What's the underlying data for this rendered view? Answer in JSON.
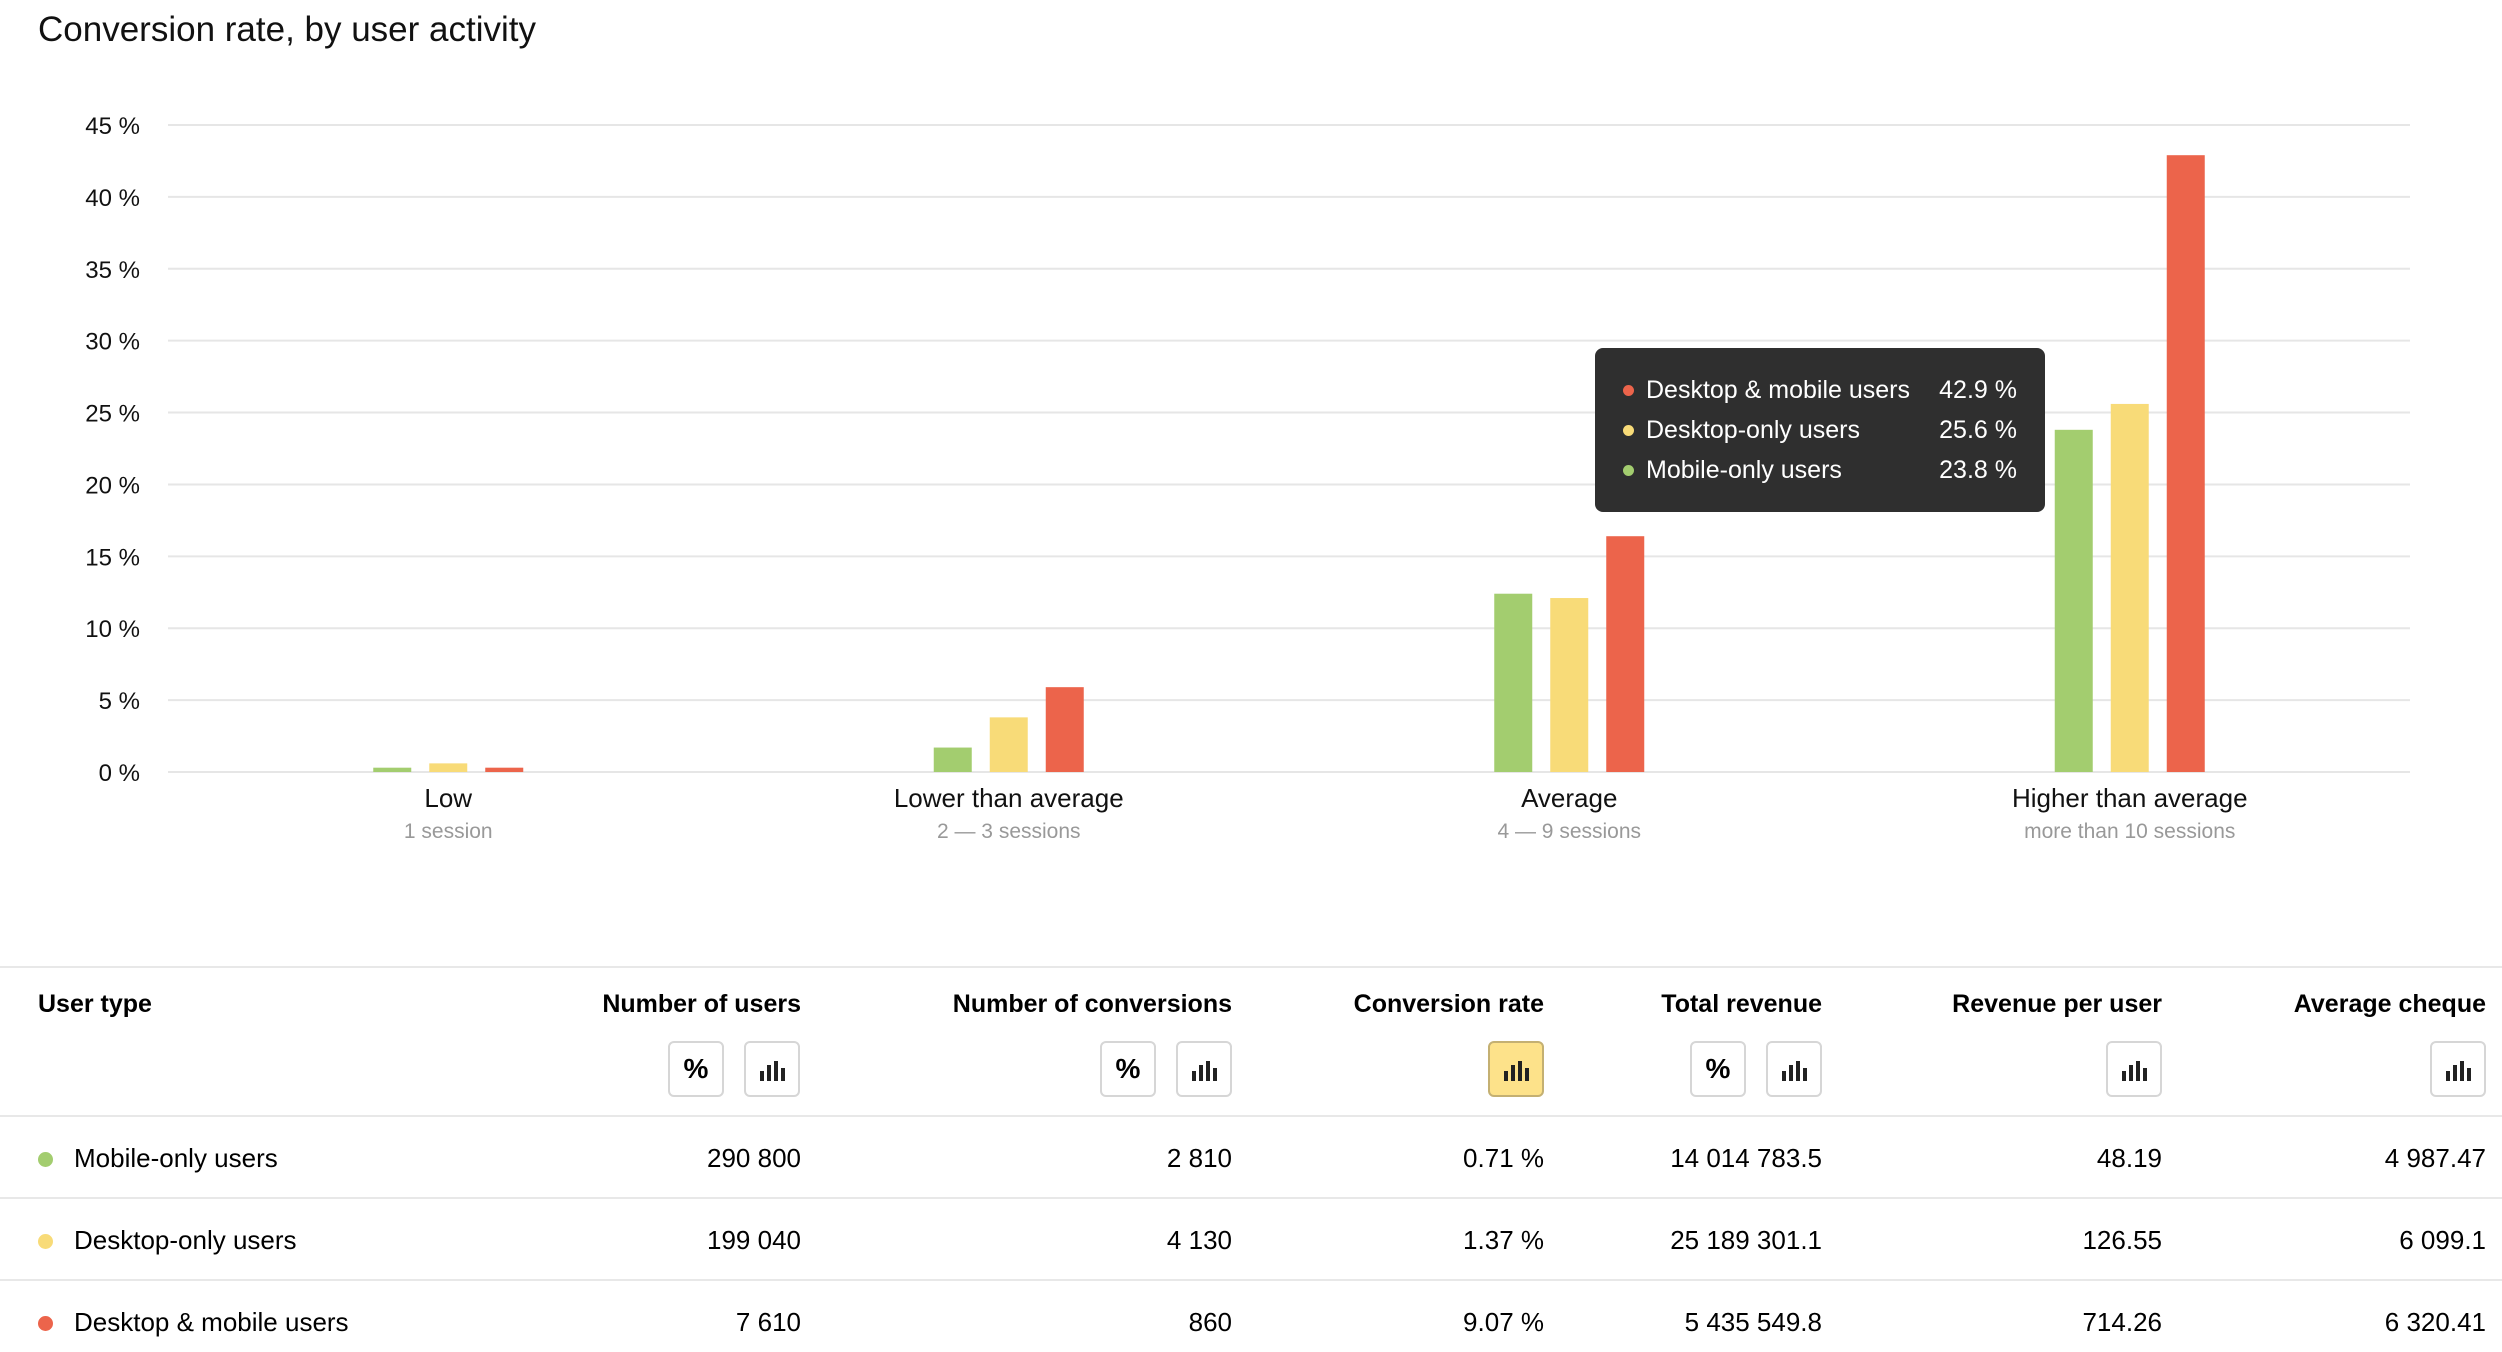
{
  "title": "Conversion rate, by user activity",
  "colors": {
    "mobile": "#a3cd6f",
    "desktop": "#f8db78",
    "both": "#ec644b",
    "grid": "#e6e6e6",
    "tooltip_bg": "#2f2f2f",
    "active_button": "#fde28a"
  },
  "chart_data": {
    "type": "bar",
    "y_ticks": [
      "45 %",
      "40 %",
      "35 %",
      "30 %",
      "25 %",
      "20 %",
      "15 %",
      "10 %",
      "5 %",
      "0 %"
    ],
    "ylim": [
      0,
      45
    ],
    "grid": true,
    "categories": [
      {
        "label": "Low",
        "sublabel": "1 session"
      },
      {
        "label": "Lower than average",
        "sublabel": "2 — 3 sessions"
      },
      {
        "label": "Average",
        "sublabel": "4 — 9 sessions"
      },
      {
        "label": "Higher than average",
        "sublabel": "more than 10 sessions"
      }
    ],
    "series": [
      {
        "name": "Mobile-only users",
        "color": "#a3cd6f",
        "values": [
          0.3,
          1.7,
          12.4,
          23.8
        ]
      },
      {
        "name": "Desktop-only users",
        "color": "#f8db78",
        "values": [
          0.6,
          3.8,
          12.1,
          25.6
        ]
      },
      {
        "name": "Desktop & mobile users",
        "color": "#ec644b",
        "values": [
          0.3,
          5.9,
          16.4,
          42.9
        ]
      }
    ]
  },
  "tooltip": {
    "rows": [
      {
        "name": "Desktop & mobile users",
        "value": "42.9 %",
        "color": "#ec644b"
      },
      {
        "name": "Desktop-only users",
        "value": "25.6 %",
        "color": "#f8db78"
      },
      {
        "name": "Mobile-only users",
        "value": "23.8 %",
        "color": "#a3cd6f"
      }
    ]
  },
  "table": {
    "headers": {
      "user_type": "User type",
      "users": "Number of users",
      "conversions": "Number of conversions",
      "rate": "Conversion rate",
      "revenue": "Total revenue",
      "revenue_per_user": "Revenue per user",
      "average_cheque": "Average cheque"
    },
    "icons": {
      "percent": "percent-icon",
      "chart": "bar-chart-icon"
    },
    "percent_symbol": "%",
    "rows": [
      {
        "name": "Mobile-only users",
        "color": "#a3cd6f",
        "users": "290 800",
        "conversions": "2 810",
        "rate": "0.71 %",
        "revenue": "14 014 783.5",
        "revenue_per_user": "48.19",
        "average_cheque": "4 987.47"
      },
      {
        "name": "Desktop-only users",
        "color": "#f8db78",
        "users": "199 040",
        "conversions": "4 130",
        "rate": "1.37 %",
        "revenue": "25 189 301.1",
        "revenue_per_user": "126.55",
        "average_cheque": "6 099.1"
      },
      {
        "name": "Desktop & mobile users",
        "color": "#ec644b",
        "users": "7 610",
        "conversions": "860",
        "rate": "9.07 %",
        "revenue": "5 435 549.8",
        "revenue_per_user": "714.26",
        "average_cheque": "6 320.41"
      }
    ]
  }
}
